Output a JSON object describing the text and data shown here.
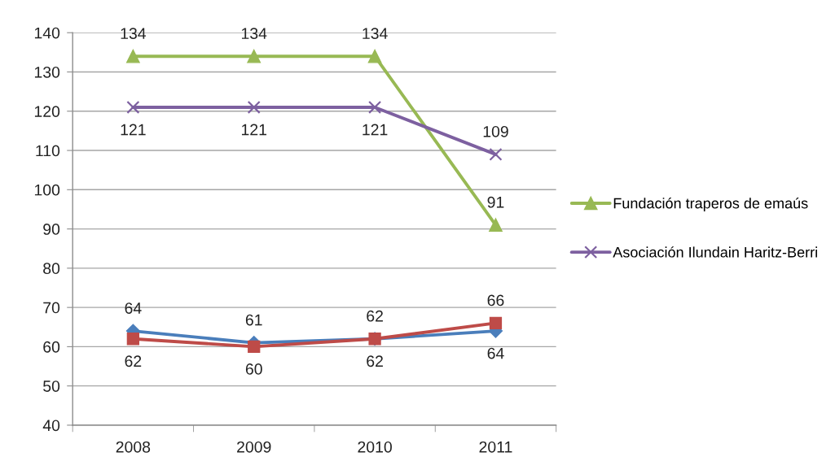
{
  "chart_data": {
    "type": "line",
    "categories": [
      "2008",
      "2009",
      "2010",
      "2011"
    ],
    "series": [
      {
        "color": "#4a7ebb",
        "marker": "diamond",
        "values": [
          64,
          61,
          62,
          64
        ]
      },
      {
        "color": "#be4b48",
        "marker": "square",
        "values": [
          62,
          60,
          62,
          66
        ]
      },
      {
        "name": "Fundación traperos de emaús",
        "color": "#98b954",
        "marker": "triangle",
        "values": [
          134,
          134,
          134,
          91
        ]
      },
      {
        "name": "Asociación Ilundain Haritz-Berri",
        "color": "#7d60a0",
        "marker": "cross",
        "values": [
          121,
          121,
          121,
          109
        ]
      }
    ],
    "ylim": [
      40,
      140
    ],
    "yticks": [
      40,
      50,
      60,
      70,
      80,
      90,
      100,
      110,
      120,
      130,
      140
    ],
    "grid": "y",
    "legend": "right",
    "data_labels": true,
    "line_style": "solid"
  }
}
